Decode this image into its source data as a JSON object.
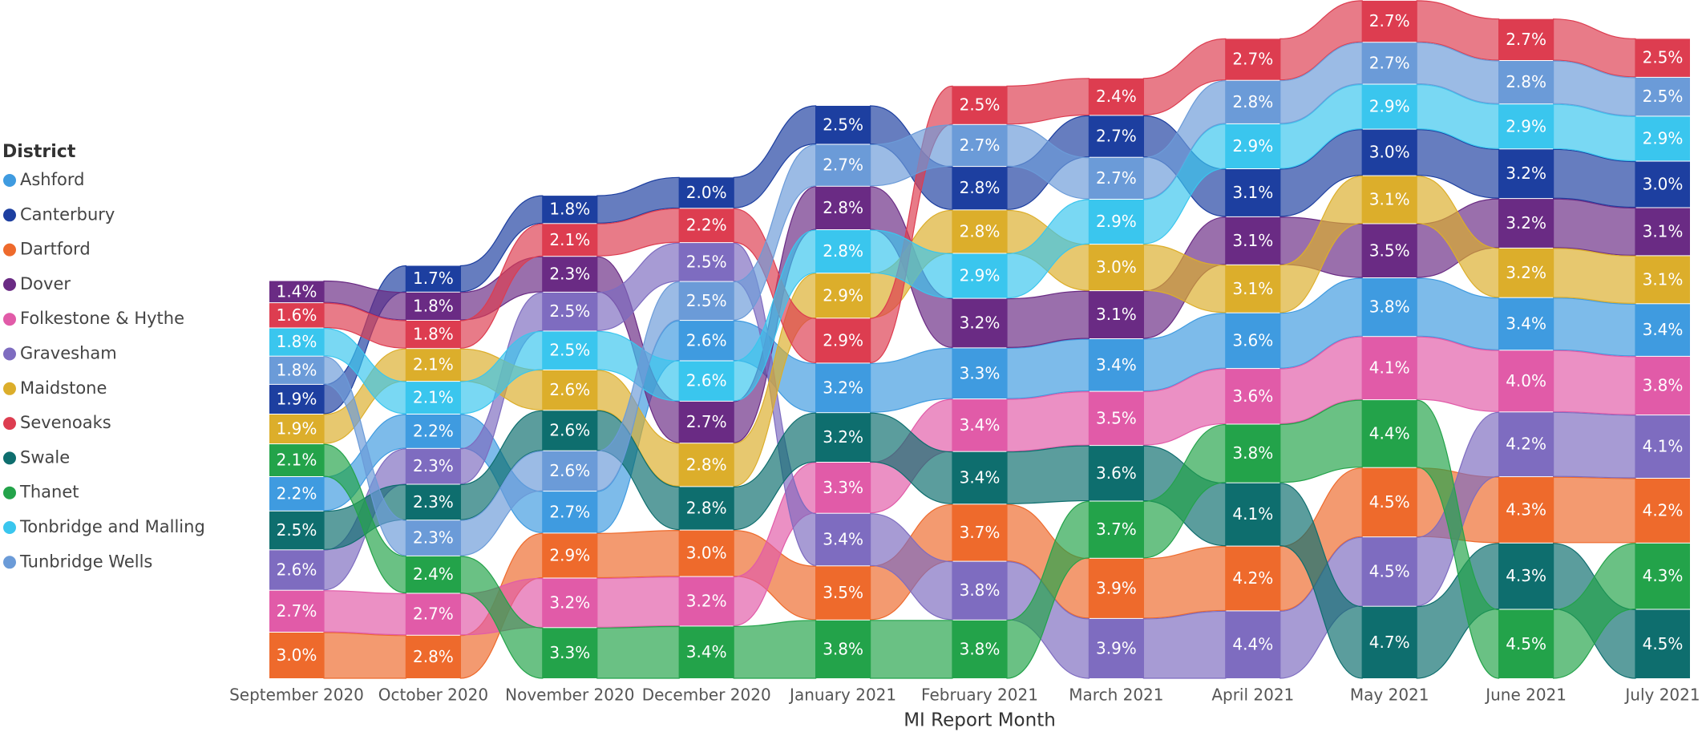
{
  "chart_data": {
    "type": "ribbon",
    "legend_title": "District",
    "legend_position": "left",
    "x_label": "MI Report Month",
    "categories": [
      "September 2020",
      "October 2020",
      "November 2020",
      "December 2020",
      "January 2021",
      "February 2021",
      "March 2021",
      "April 2021",
      "May 2021",
      "June 2021",
      "July 2021"
    ],
    "series": [
      {
        "name": "Ashford",
        "color": "#3f9be0",
        "values": [
          2.2,
          2.2,
          2.7,
          2.6,
          3.2,
          3.3,
          3.4,
          3.6,
          3.8,
          3.4,
          3.4
        ],
        "value_labels": [
          "2.2%",
          "2.2%",
          "2.7%",
          "2.6%",
          "3.2%",
          "3.3%",
          "3.4%",
          "3.6%",
          "3.8%",
          "3.4%",
          "3.4%"
        ]
      },
      {
        "name": "Canterbury",
        "color": "#1d3fa0",
        "values": [
          1.9,
          1.7,
          1.8,
          2.0,
          2.5,
          2.8,
          2.7,
          3.1,
          3.0,
          3.2,
          3.0
        ],
        "value_labels": [
          "1.9%",
          "1.7%",
          "1.8%",
          "2.0%",
          "2.5%",
          "2.8%",
          "2.7%",
          "3.1%",
          "3.0%",
          "3.2%",
          "3.0%"
        ]
      },
      {
        "name": "Dartford",
        "color": "#ee6a2c",
        "values": [
          3.0,
          2.8,
          2.9,
          3.0,
          3.5,
          3.7,
          3.9,
          4.2,
          4.5,
          4.3,
          4.2
        ],
        "value_labels": [
          "3.0%",
          "2.8%",
          "2.9%",
          "3.0%",
          "3.5%",
          "3.7%",
          "3.9%",
          "4.2%",
          "4.5%",
          "4.3%",
          "4.2%"
        ]
      },
      {
        "name": "Dover",
        "color": "#6a2b84",
        "values": [
          1.4,
          1.8,
          2.3,
          2.7,
          2.8,
          3.2,
          3.1,
          3.1,
          3.5,
          3.2,
          3.1
        ],
        "value_labels": [
          "1.4%",
          "1.8%",
          "2.3%",
          "2.7%",
          "2.8%",
          "3.2%",
          "3.1%",
          "3.1%",
          "3.5%",
          "3.2%",
          "3.1%"
        ]
      },
      {
        "name": "Folkestone & Hythe",
        "color": "#e15ba8",
        "values": [
          2.7,
          2.7,
          3.2,
          3.2,
          3.3,
          3.4,
          3.5,
          3.6,
          4.1,
          4.0,
          3.8
        ],
        "value_labels": [
          "2.7%",
          "2.7%",
          "3.2%",
          "3.2%",
          "3.3%",
          "3.4%",
          "3.5%",
          "3.6%",
          "4.1%",
          "4.0%",
          "3.8%"
        ]
      },
      {
        "name": "Gravesham",
        "color": "#7e6cc0",
        "values": [
          2.6,
          2.3,
          2.5,
          2.5,
          3.4,
          3.8,
          3.9,
          4.4,
          4.5,
          4.2,
          4.1
        ],
        "value_labels": [
          "2.6%",
          "2.3%",
          "2.5%",
          "2.5%",
          "3.4%",
          "3.8%",
          "3.9%",
          "4.4%",
          "4.5%",
          "4.2%",
          "4.1%"
        ]
      },
      {
        "name": "Maidstone",
        "color": "#dcae2b",
        "values": [
          1.9,
          2.1,
          2.6,
          2.8,
          2.9,
          2.8,
          3.0,
          3.1,
          3.1,
          3.2,
          3.1
        ],
        "value_labels": [
          "1.9%",
          "2.1%",
          "2.6%",
          "2.8%",
          "2.9%",
          "2.8%",
          "3.0%",
          "3.1%",
          "3.1%",
          "3.2%",
          "3.1%"
        ]
      },
      {
        "name": "Sevenoaks",
        "color": "#dd3d50",
        "values": [
          1.6,
          1.8,
          2.1,
          2.2,
          2.9,
          2.5,
          2.4,
          2.7,
          2.7,
          2.7,
          2.5
        ],
        "value_labels": [
          "1.6%",
          "1.8%",
          "2.1%",
          "2.2%",
          "2.9%",
          "2.5%",
          "2.4%",
          "2.7%",
          "2.7%",
          "2.7%",
          "2.5%"
        ]
      },
      {
        "name": "Swale",
        "color": "#0e6e6e",
        "values": [
          2.5,
          2.3,
          2.6,
          2.8,
          3.2,
          3.4,
          3.6,
          4.1,
          4.7,
          4.3,
          4.5
        ],
        "value_labels": [
          "2.5%",
          "2.3%",
          "2.6%",
          "2.8%",
          "3.2%",
          "3.4%",
          "3.6%",
          "4.1%",
          "4.7%",
          "4.3%",
          "4.5%"
        ]
      },
      {
        "name": "Thanet",
        "color": "#23a34a",
        "values": [
          2.1,
          2.4,
          3.3,
          3.4,
          3.8,
          3.8,
          3.7,
          3.8,
          4.4,
          4.5,
          4.3
        ],
        "value_labels": [
          "2.1%",
          "2.4%",
          "3.3%",
          "3.4%",
          "3.8%",
          "3.8%",
          "3.7%",
          "3.8%",
          "4.4%",
          "4.5%",
          "4.3%"
        ]
      },
      {
        "name": "Tonbridge and Malling",
        "color": "#3ac6ee",
        "values": [
          1.8,
          2.1,
          2.5,
          2.6,
          2.8,
          2.9,
          2.9,
          2.9,
          2.9,
          2.9,
          2.9
        ],
        "value_labels": [
          "1.8%",
          "2.1%",
          "2.5%",
          "2.6%",
          "2.8%",
          "2.9%",
          "2.9%",
          "2.9%",
          "2.9%",
          "2.9%",
          "2.9%"
        ]
      },
      {
        "name": "Tunbridge Wells",
        "color": "#6b9bd8",
        "values": [
          1.8,
          2.3,
          2.6,
          2.5,
          2.7,
          2.7,
          2.7,
          2.8,
          2.7,
          2.8,
          2.5
        ],
        "value_labels": [
          "1.8%",
          "2.3%",
          "2.6%",
          "2.5%",
          "2.7%",
          "2.7%",
          "2.7%",
          "2.8%",
          "2.7%",
          "2.8%",
          "2.5%"
        ]
      }
    ]
  }
}
